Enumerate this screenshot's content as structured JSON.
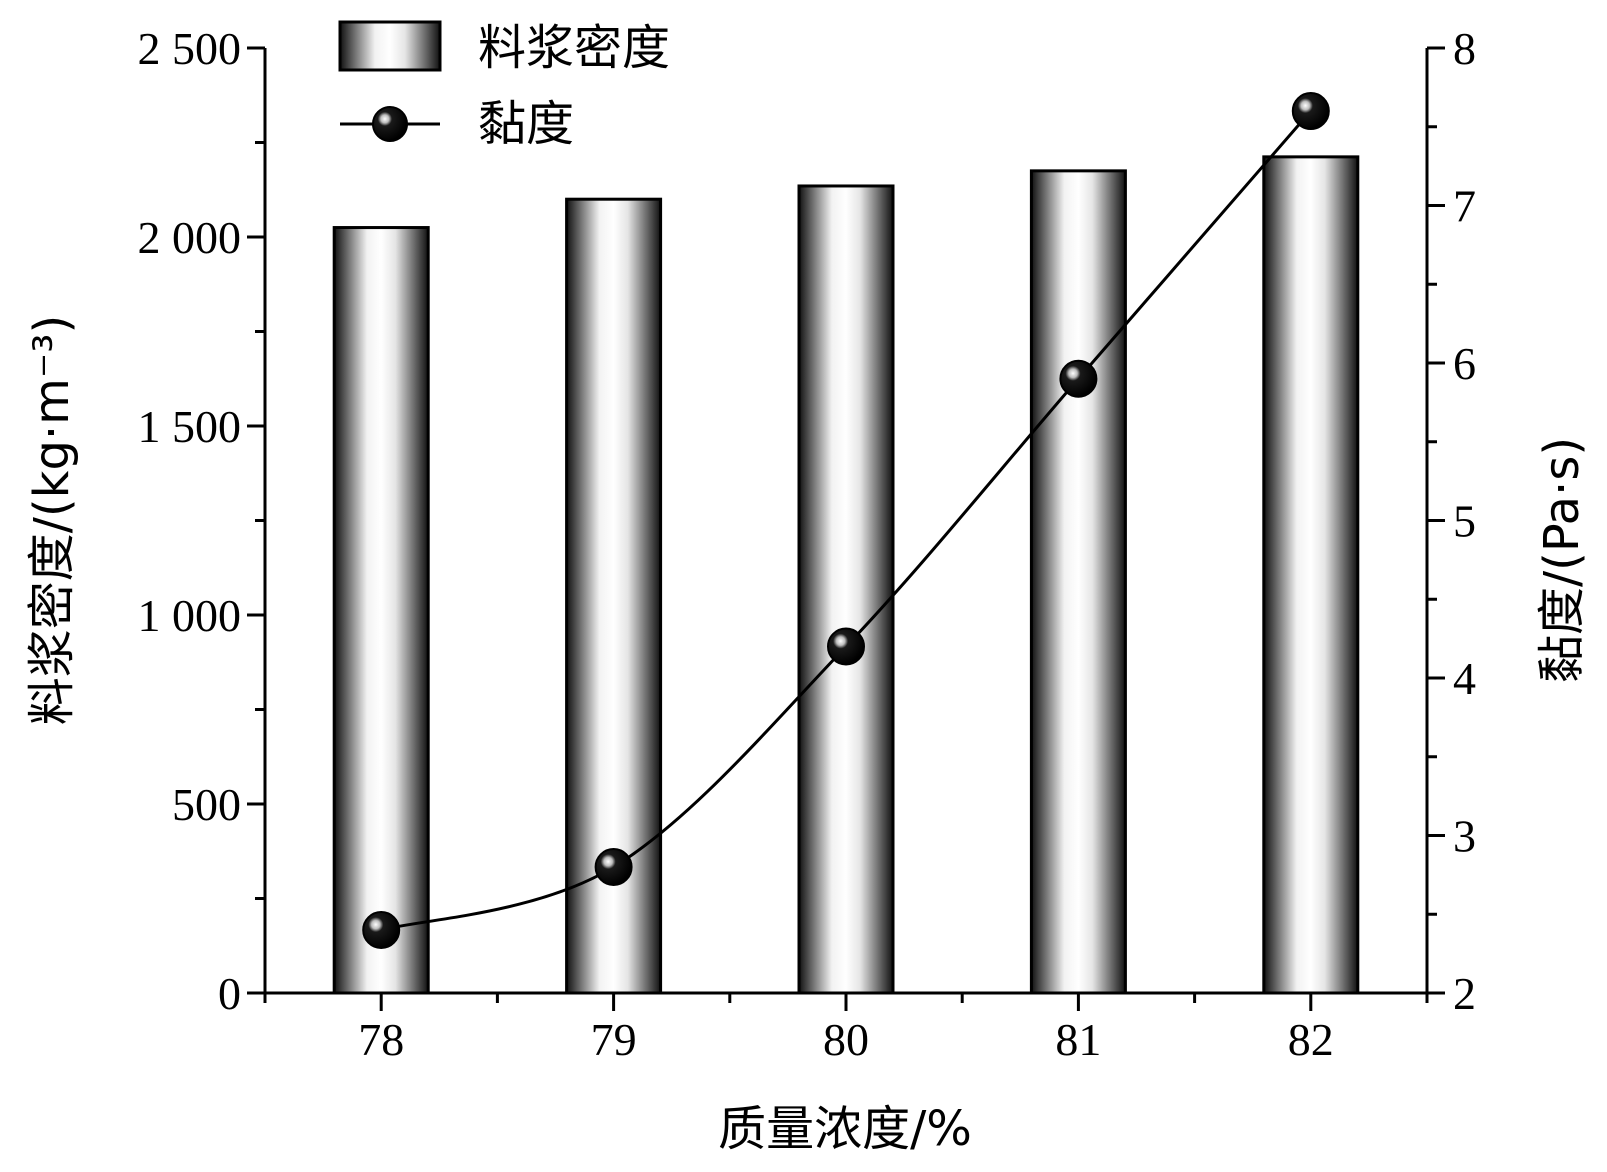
{
  "chart_data": {
    "type": "bar",
    "categories": [
      "78",
      "79",
      "80",
      "81",
      "82"
    ],
    "series": [
      {
        "name": "料浆密度",
        "type": "bar",
        "axis": "left",
        "values": [
          2025,
          2100,
          2135,
          2175,
          2212
        ]
      },
      {
        "name": "黏度",
        "type": "line",
        "axis": "right",
        "values": [
          2.4,
          2.8,
          4.2,
          5.9,
          7.6
        ]
      }
    ],
    "xlabel": "质量浓度/%",
    "ylabel_left": "料浆密度/(kg·m⁻³)",
    "ylabel_right": "黏度/(Pa·s)",
    "ylim_left": [
      0,
      2500
    ],
    "ylim_right": [
      2,
      8
    ],
    "yticks_left": [
      0,
      500,
      1000,
      1500,
      2000,
      2500
    ],
    "yticks_left_labels": [
      "0",
      "500",
      "1 000",
      "1 500",
      "2 000",
      "2 500"
    ],
    "yticks_right": [
      2,
      3,
      4,
      5,
      6,
      7,
      8
    ],
    "yticks_right_labels": [
      "2",
      "3",
      "4",
      "5",
      "6",
      "7",
      "8"
    ],
    "grid": false,
    "legend_position": "top-left",
    "colors": {
      "bar_dark": "#111111",
      "bar_light": "#ffffff",
      "line": "#000000"
    }
  }
}
